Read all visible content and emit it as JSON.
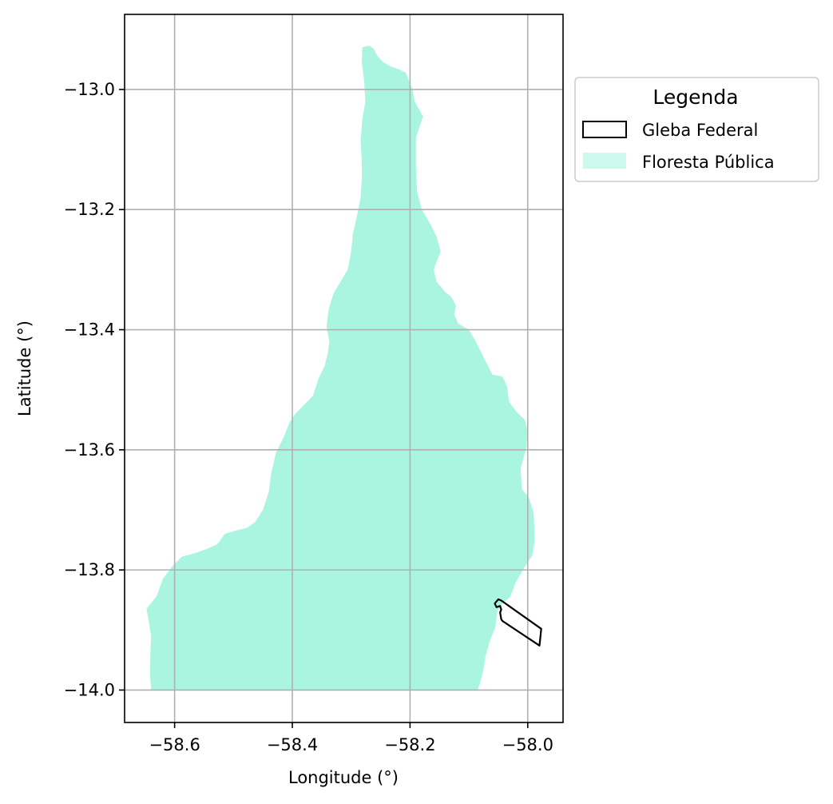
{
  "chart_data": {
    "type": "map",
    "xlabel": "Longitude (°)",
    "ylabel": "Latitude (°)",
    "xlim": [
      -58.685,
      -57.94
    ],
    "ylim": [
      -14.054,
      -12.875
    ],
    "xticks": [
      -58.6,
      -58.4,
      -58.2,
      -58.0
    ],
    "xtick_labels": [
      "−58.6",
      "−58.4",
      "−58.2",
      "−58.0"
    ],
    "yticks": [
      -13.0,
      -13.2,
      -13.4,
      -13.6,
      -13.8,
      -14.0
    ],
    "ytick_labels": [
      "−13.0",
      "−13.2",
      "−13.4",
      "−13.6",
      "−13.8",
      "−14.0"
    ],
    "grid": true,
    "legend": {
      "title": "Legenda",
      "placement": "outside-upper-right",
      "entries": [
        {
          "label": "Gleba Federal",
          "style": "outline",
          "edge_color": "#000000"
        },
        {
          "label": "Floresta Pública",
          "style": "fill",
          "fill_color": "#aaf5e0"
        }
      ]
    },
    "layers": [
      {
        "name": "Floresta Pública",
        "style": "fill",
        "color": "#aaf5e0",
        "polygon": [
          [
            -58.27,
            -12.927
          ],
          [
            -58.262,
            -12.932
          ],
          [
            -58.255,
            -12.945
          ],
          [
            -58.245,
            -12.955
          ],
          [
            -58.232,
            -12.962
          ],
          [
            -58.22,
            -12.966
          ],
          [
            -58.207,
            -12.972
          ],
          [
            -58.202,
            -12.985
          ],
          [
            -58.196,
            -13.0
          ],
          [
            -58.192,
            -13.02
          ],
          [
            -58.178,
            -13.045
          ],
          [
            -58.19,
            -13.08
          ],
          [
            -58.19,
            -13.13
          ],
          [
            -58.188,
            -13.17
          ],
          [
            -58.18,
            -13.2
          ],
          [
            -58.165,
            -13.225
          ],
          [
            -58.155,
            -13.245
          ],
          [
            -58.148,
            -13.27
          ],
          [
            -58.16,
            -13.3
          ],
          [
            -58.155,
            -13.32
          ],
          [
            -58.14,
            -13.338
          ],
          [
            -58.13,
            -13.345
          ],
          [
            -58.122,
            -13.36
          ],
          [
            -58.125,
            -13.375
          ],
          [
            -58.118,
            -13.39
          ],
          [
            -58.1,
            -13.4
          ],
          [
            -58.088,
            -13.42
          ],
          [
            -58.073,
            -13.45
          ],
          [
            -58.06,
            -13.475
          ],
          [
            -58.043,
            -13.478
          ],
          [
            -58.035,
            -13.495
          ],
          [
            -58.032,
            -13.52
          ],
          [
            -58.018,
            -13.538
          ],
          [
            -58.005,
            -13.55
          ],
          [
            -58.0,
            -13.57
          ],
          [
            -58.003,
            -13.6
          ],
          [
            -58.012,
            -13.63
          ],
          [
            -58.01,
            -13.665
          ],
          [
            -57.998,
            -13.68
          ],
          [
            -57.99,
            -13.705
          ],
          [
            -57.988,
            -13.75
          ],
          [
            -57.992,
            -13.775
          ],
          [
            -58.005,
            -13.795
          ],
          [
            -58.02,
            -13.82
          ],
          [
            -58.03,
            -13.845
          ],
          [
            -58.045,
            -13.858
          ],
          [
            -58.052,
            -13.87
          ],
          [
            -58.055,
            -13.895
          ],
          [
            -58.065,
            -13.92
          ],
          [
            -58.072,
            -13.945
          ],
          [
            -58.075,
            -13.965
          ],
          [
            -58.08,
            -13.985
          ],
          [
            -58.085,
            -14.0
          ],
          [
            -58.64,
            -14.0
          ],
          [
            -58.642,
            -13.97
          ],
          [
            -58.641,
            -13.935
          ],
          [
            -58.64,
            -13.91
          ],
          [
            -58.645,
            -13.88
          ],
          [
            -58.648,
            -13.865
          ],
          [
            -58.63,
            -13.843
          ],
          [
            -58.62,
            -13.815
          ],
          [
            -58.605,
            -13.795
          ],
          [
            -58.588,
            -13.778
          ],
          [
            -58.565,
            -13.772
          ],
          [
            -58.545,
            -13.765
          ],
          [
            -58.527,
            -13.757
          ],
          [
            -58.515,
            -13.74
          ],
          [
            -58.498,
            -13.735
          ],
          [
            -58.477,
            -13.73
          ],
          [
            -58.463,
            -13.72
          ],
          [
            -58.45,
            -13.7
          ],
          [
            -58.44,
            -13.67
          ],
          [
            -58.436,
            -13.64
          ],
          [
            -58.428,
            -13.605
          ],
          [
            -58.415,
            -13.58
          ],
          [
            -58.405,
            -13.555
          ],
          [
            -58.395,
            -13.54
          ],
          [
            -58.38,
            -13.525
          ],
          [
            -58.365,
            -13.51
          ],
          [
            -58.355,
            -13.48
          ],
          [
            -58.345,
            -13.46
          ],
          [
            -58.34,
            -13.44
          ],
          [
            -58.337,
            -13.42
          ],
          [
            -58.342,
            -13.395
          ],
          [
            -58.338,
            -13.365
          ],
          [
            -58.33,
            -13.34
          ],
          [
            -58.318,
            -13.32
          ],
          [
            -58.306,
            -13.3
          ],
          [
            -58.3,
            -13.27
          ],
          [
            -58.297,
            -13.24
          ],
          [
            -58.29,
            -13.21
          ],
          [
            -58.284,
            -13.18
          ],
          [
            -58.282,
            -13.15
          ],
          [
            -58.282,
            -13.12
          ],
          [
            -58.284,
            -13.085
          ],
          [
            -58.281,
            -13.05
          ],
          [
            -58.276,
            -13.02
          ],
          [
            -58.278,
            -12.985
          ],
          [
            -58.282,
            -12.955
          ],
          [
            -58.281,
            -12.93
          ]
        ]
      },
      {
        "name": "Gleba Federal",
        "style": "outline",
        "color": "#000000",
        "polygon": [
          [
            -58.05,
            -13.849
          ],
          [
            -58.056,
            -13.856
          ],
          [
            -58.053,
            -13.862
          ],
          [
            -58.047,
            -13.86
          ],
          [
            -58.045,
            -13.866
          ],
          [
            -58.047,
            -13.871
          ],
          [
            -58.045,
            -13.882
          ],
          [
            -58.043,
            -13.885
          ],
          [
            -57.98,
            -13.926
          ],
          [
            -57.977,
            -13.898
          ],
          [
            -58.045,
            -13.851
          ]
        ]
      }
    ]
  }
}
